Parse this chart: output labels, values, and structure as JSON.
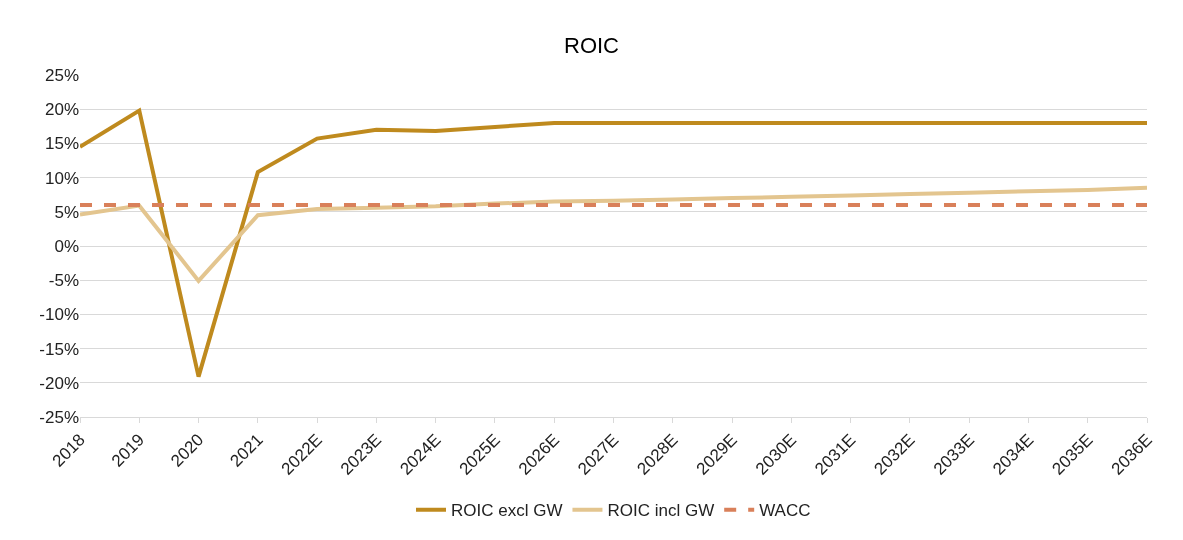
{
  "chart_data": {
    "type": "line",
    "title": "ROIC",
    "categories": [
      "2018",
      "2019",
      "2020",
      "2021",
      "2022E",
      "2023E",
      "2024E",
      "2025E",
      "2026E",
      "2027E",
      "2028E",
      "2029E",
      "2030E",
      "2031E",
      "2032E",
      "2033E",
      "2034E",
      "2035E",
      "2036E"
    ],
    "series": [
      {
        "name": "ROIC excl GW",
        "color": "#bf8a1e",
        "line_style": "solid",
        "values": [
          14.5,
          19.8,
          -19.1,
          10.8,
          15.7,
          17.0,
          16.8,
          17.4,
          18.0,
          18.0,
          18.0,
          18.0,
          18.0,
          18.0,
          18.0,
          18.0,
          18.0,
          18.0,
          18.0
        ]
      },
      {
        "name": "ROIC incl GW",
        "color": "#e3c58f",
        "line_style": "solid",
        "values": [
          4.6,
          5.9,
          -5.1,
          4.5,
          5.4,
          5.6,
          5.8,
          6.2,
          6.5,
          6.6,
          6.8,
          7.0,
          7.2,
          7.4,
          7.6,
          7.8,
          8.0,
          8.2,
          8.5
        ]
      },
      {
        "name": "WACC",
        "color": "#d9805a",
        "line_style": "dashed",
        "values": [
          6,
          6,
          6,
          6,
          6,
          6,
          6,
          6,
          6,
          6,
          6,
          6,
          6,
          6,
          6,
          6,
          6,
          6,
          6
        ]
      }
    ],
    "ylim": [
      -25,
      25
    ],
    "yticks": [
      {
        "value": -25,
        "label": "-25%"
      },
      {
        "value": -20,
        "label": "-20%"
      },
      {
        "value": -15,
        "label": "-15%"
      },
      {
        "value": -10,
        "label": "-10%"
      },
      {
        "value": -5,
        "label": "-5%"
      },
      {
        "value": 0,
        "label": "0%"
      },
      {
        "value": 5,
        "label": "5%"
      },
      {
        "value": 10,
        "label": "10%"
      },
      {
        "value": 15,
        "label": "15%"
      },
      {
        "value": 20,
        "label": "20%"
      },
      {
        "value": 25,
        "label": "25%"
      }
    ],
    "grid": "y",
    "legend": "bottom",
    "marker": "none"
  }
}
